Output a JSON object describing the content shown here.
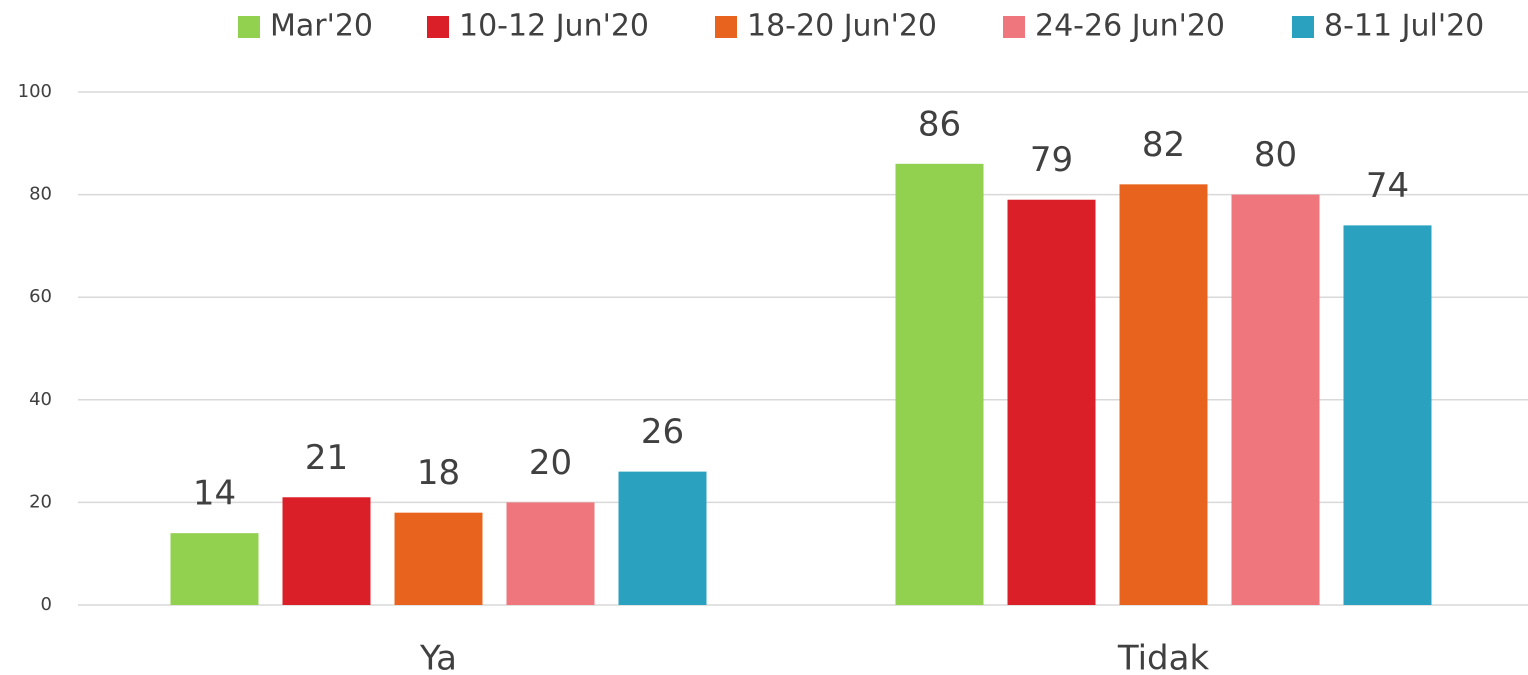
{
  "chart_data": {
    "type": "bar",
    "categories": [
      "Ya",
      "Tidak"
    ],
    "series": [
      {
        "name": "Mar'20",
        "color": "#92d050",
        "values": [
          14,
          86
        ]
      },
      {
        "name": "10-12 Jun'20",
        "color": "#da1f28",
        "values": [
          21,
          79
        ]
      },
      {
        "name": "18-20 Jun'20",
        "color": "#e8641e",
        "values": [
          18,
          82
        ]
      },
      {
        "name": "24-26 Jun'20",
        "color": "#ee767c",
        "values": [
          20,
          80
        ]
      },
      {
        "name": "8-11 Jul'20",
        "color": "#2aa2bf",
        "values": [
          26,
          74
        ]
      }
    ],
    "ylim": [
      0,
      100
    ],
    "yticks": [
      0,
      20,
      40,
      60,
      80,
      100
    ],
    "grid": true,
    "legend": "top",
    "data_labels": true
  }
}
